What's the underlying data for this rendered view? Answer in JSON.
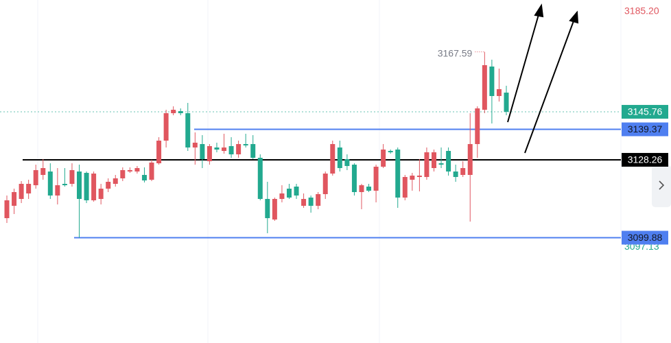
{
  "chart_data": {
    "type": "candlestick",
    "up_color": "#e0565f",
    "down_color": "#22a98f",
    "ylim": [
      3061.5,
      3186.5
    ],
    "open": [
      3107,
      3111.5,
      3114,
      3116,
      3119,
      3122.75,
      3124,
      3115.25,
      3119.5,
      3119.5,
      3124,
      3123.5,
      3113.5,
      3114,
      3117.75,
      3119.5,
      3121.5,
      3124,
      3124,
      3122.75,
      3121,
      3127,
      3135.25,
      3145.25,
      3146,
      3145.25,
      3132.75,
      3134,
      3127.75,
      3132.75,
      3131.5,
      3133.25,
      3130.25,
      3134,
      3134,
      3129,
      3114,
      3106.5,
      3114,
      3117.75,
      3118.5,
      3111.5,
      3114.5,
      3111.5,
      3115.75,
      3123.25,
      3132.75,
      3128.5,
      3126.5,
      3116.5,
      3118.5,
      3117,
      3125.75,
      3131.5,
      3132,
      3114.5,
      3121,
      3122,
      3122,
      3125.25,
      3127,
      3131.5,
      3124,
      3122.75,
      3122.75,
      3134,
      3146.5,
      3162.25,
      3151.5,
      3152.75
    ],
    "high": [
      3115.25,
      3117.75,
      3120.5,
      3121,
      3126.5,
      3128.5,
      3127,
      3125.25,
      3125.25,
      3127,
      3126.5,
      3124,
      3124,
      3119.5,
      3121.5,
      3122.75,
      3125.5,
      3125.5,
      3126,
      3125.5,
      3128.25,
      3136.5,
      3146.5,
      3147.75,
      3147,
      3149,
      3138.25,
      3137.25,
      3134,
      3134.5,
      3137.75,
      3136.5,
      3135.25,
      3137.75,
      3137.25,
      3130.25,
      3120.25,
      3114.5,
      3119,
      3119.5,
      3119.5,
      3116,
      3115.25,
      3116.5,
      3124,
      3135.25,
      3135.25,
      3130.25,
      3127,
      3119.5,
      3119.5,
      3126.5,
      3134,
      3132,
      3132.75,
      3122.75,
      3123.5,
      3128.5,
      3132.75,
      3132,
      3132.75,
      3132.75,
      3126.5,
      3127.75,
      3145.25,
      3147.75,
      3167.59,
      3164.75,
      3161.5,
      3155.25
    ],
    "low": [
      3105.25,
      3108.5,
      3112.5,
      3114,
      3117.75,
      3121,
      3114,
      3112,
      3118.5,
      3118.5,
      3099.88,
      3112.5,
      3113,
      3112,
      3116.5,
      3118.5,
      3120.5,
      3123.5,
      3123.25,
      3120,
      3120.5,
      3126.5,
      3132.75,
      3144.5,
      3144.5,
      3131.5,
      3126.5,
      3125.25,
      3126.5,
      3131,
      3130.5,
      3129,
      3129,
      3132.75,
      3128.5,
      3113.5,
      3101.5,
      3106,
      3112.75,
      3114,
      3114,
      3110.75,
      3109,
      3110.25,
      3114,
      3122.5,
      3124,
      3124.5,
      3115.25,
      3110.25,
      3116.5,
      3112.75,
      3125.25,
      3130.5,
      3110.75,
      3113.5,
      3117,
      3116.75,
      3121,
      3124,
      3125.25,
      3122.5,
      3120.25,
      3122,
      3105.75,
      3129,
      3145.25,
      3141.5,
      3149.5,
      3144.5
    ],
    "close": [
      3113.5,
      3116.5,
      3119.5,
      3119.5,
      3124.5,
      3125.25,
      3115.25,
      3119,
      3119,
      3124.5,
      3114,
      3113.5,
      3123.25,
      3117.75,
      3120.25,
      3121.5,
      3124.5,
      3124.5,
      3125.25,
      3120.75,
      3127.25,
      3135.25,
      3145.25,
      3146.5,
      3145.25,
      3132.75,
      3134.5,
      3128.5,
      3133.25,
      3132,
      3132.75,
      3130.25,
      3134,
      3133.5,
      3129,
      3114,
      3107,
      3114,
      3116,
      3114.5,
      3115.25,
      3114,
      3111.5,
      3115.75,
      3123.25,
      3134,
      3125.25,
      3126,
      3116.5,
      3119,
      3117,
      3125.75,
      3132,
      3131,
      3114.5,
      3122,
      3122.5,
      3122.5,
      3131,
      3131,
      3126.5,
      3124,
      3122,
      3125.25,
      3134,
      3147,
      3162.75,
      3151.5,
      3154,
      3145.76
    ],
    "price_lines": [
      {
        "value": 3139.37,
        "label": "3139.37",
        "color": "#4f7ff0"
      },
      {
        "value": 3128.26,
        "label": "3128.26",
        "color": "#000000"
      },
      {
        "value": 3099.88,
        "label": "3099.88",
        "color": "#4f7ff0"
      }
    ],
    "last_price": {
      "value": 3145.76,
      "label": "3145.76",
      "color": "#22a98f"
    },
    "high_label": {
      "value": 3167.59,
      "label": "3167.59"
    },
    "axis_labels": [
      {
        "value": 3185.2,
        "label": "3185.20",
        "color": "#e0565f"
      },
      {
        "value": 3097.13,
        "label": "3097.13",
        "color": "#22a98f"
      }
    ]
  }
}
